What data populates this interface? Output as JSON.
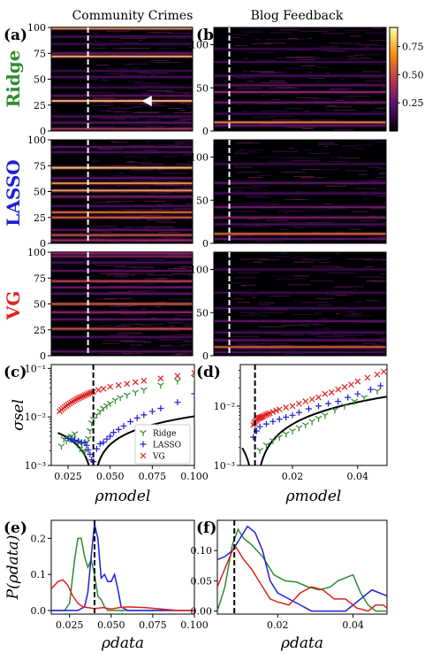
{
  "column_titles": [
    "Community Crimes",
    "Blog Feedback"
  ],
  "row_labels": [
    {
      "text": "Ridge",
      "color": "#2e8b2e"
    },
    {
      "text": "LASSO",
      "color": "#1f1fd6"
    },
    {
      "text": "VG",
      "color": "#e02020"
    }
  ],
  "panel_letters": [
    "(a)",
    "(b)",
    "(c)",
    "(d)",
    "(e)",
    "(f)"
  ],
  "colorbar": {
    "ticks": [
      "0.75",
      "0.50",
      "0.25"
    ],
    "colormap": "inferno"
  },
  "chart_data": [
    {
      "id": "a-heatmaps",
      "type": "heatmap",
      "dataset": "Community Crimes",
      "ylim": [
        0,
        100
      ],
      "yticks": [
        "0",
        "25",
        "50",
        "75",
        "100"
      ],
      "dashed_line_fraction": 0.26,
      "rows": {
        "Ridge": [
          [
            2,
            0.55
          ],
          [
            8,
            0.3
          ],
          [
            14,
            0.25
          ],
          [
            29,
            0.95
          ],
          [
            34,
            0.3
          ],
          [
            42,
            0.2
          ],
          [
            52,
            0.25
          ],
          [
            58,
            0.2
          ],
          [
            72,
            0.95
          ],
          [
            75,
            0.35
          ],
          [
            84,
            0.2
          ],
          [
            91,
            0.25
          ],
          [
            99,
            0.9
          ]
        ],
        "LASSO": [
          [
            3,
            0.5
          ],
          [
            8,
            0.65
          ],
          [
            13,
            0.3
          ],
          [
            25,
            0.7
          ],
          [
            30,
            0.75
          ],
          [
            36,
            0.25
          ],
          [
            45,
            0.4
          ],
          [
            51,
            0.9
          ],
          [
            58,
            0.85
          ],
          [
            63,
            0.3
          ],
          [
            73,
            1.0
          ],
          [
            88,
            0.25
          ],
          [
            93,
            0.3
          ]
        ],
        "VG": [
          [
            4,
            0.3
          ],
          [
            18,
            0.25
          ],
          [
            26,
            0.65
          ],
          [
            35,
            0.3
          ],
          [
            42,
            0.45
          ],
          [
            50,
            0.7
          ],
          [
            60,
            0.3
          ],
          [
            66,
            0.35
          ],
          [
            72,
            0.6
          ],
          [
            82,
            0.3
          ],
          [
            90,
            0.25
          ],
          [
            96,
            0.4
          ],
          [
            99,
            0.5
          ]
        ]
      },
      "marker": {
        "row": "Ridge",
        "y": 29,
        "x_fraction": 0.68,
        "shape": "triangle-left",
        "color": "#ffffff"
      }
    },
    {
      "id": "b-heatmaps",
      "type": "heatmap",
      "dataset": "Blog Feedback",
      "ylim": [
        0,
        120
      ],
      "yticks": [
        "0",
        "50",
        "100"
      ],
      "dashed_line_fraction": 0.09,
      "rows": {
        "Ridge": [
          [
            6,
            0.3
          ],
          [
            10,
            0.8
          ],
          [
            20,
            0.2
          ],
          [
            33,
            0.35
          ],
          [
            45,
            0.45
          ],
          [
            53,
            0.3
          ],
          [
            64,
            0.25
          ],
          [
            80,
            0.2
          ],
          [
            95,
            0.2
          ]
        ],
        "LASSO": [
          [
            5,
            0.3
          ],
          [
            11,
            0.75
          ],
          [
            22,
            0.25
          ],
          [
            30,
            0.4
          ],
          [
            42,
            0.35
          ],
          [
            58,
            0.25
          ],
          [
            70,
            0.3
          ],
          [
            92,
            0.2
          ]
        ],
        "VG": [
          [
            4,
            0.25
          ],
          [
            10,
            0.7
          ],
          [
            18,
            0.3
          ],
          [
            27,
            0.25
          ],
          [
            40,
            0.3
          ],
          [
            55,
            0.25
          ],
          [
            73,
            0.2
          ],
          [
            100,
            0.2
          ]
        ]
      }
    },
    {
      "id": "c-scatter",
      "type": "scatter",
      "ylabel": "σsel",
      "xlabel": "ρmodel",
      "log_y": true,
      "xlim": [
        0.015,
        0.1
      ],
      "ylim": [
        0.001,
        0.12
      ],
      "xticks": [
        "0.025",
        "0.050",
        "0.075",
        "0.100"
      ],
      "yticks": [
        "10⁻³",
        "10⁻²",
        "10⁻¹"
      ],
      "dashed_x": 0.04,
      "legend": {
        "placement": "lower right",
        "entries": [
          "Ridge",
          "LASSO",
          "VG"
        ]
      },
      "series": [
        {
          "name": "Ridge",
          "marker": "tri_down",
          "color": "#2e8b2e",
          "x": [
            0.021,
            0.0225,
            0.024,
            0.025,
            0.026,
            0.027,
            0.028,
            0.029,
            0.03,
            0.031,
            0.032,
            0.033,
            0.034,
            0.035,
            0.036,
            0.037,
            0.038,
            0.039,
            0.04,
            0.042,
            0.044,
            0.046,
            0.048,
            0.05,
            0.053,
            0.056,
            0.06,
            0.065,
            0.07,
            0.08,
            0.09,
            0.1
          ],
          "y": [
            0.0025,
            0.0035,
            0.0032,
            0.0038,
            0.0035,
            0.004,
            0.0036,
            0.0045,
            0.0032,
            0.0029,
            0.0022,
            0.0027,
            0.002,
            0.0019,
            0.003,
            0.0036,
            0.0052,
            0.0075,
            0.009,
            0.011,
            0.013,
            0.015,
            0.017,
            0.019,
            0.022,
            0.025,
            0.028,
            0.032,
            0.036,
            0.045,
            0.055,
            0.065
          ]
        },
        {
          "name": "LASSO",
          "marker": "plus",
          "color": "#1f1fd6",
          "x": [
            0.025,
            0.027,
            0.029,
            0.031,
            0.033,
            0.035,
            0.036,
            0.037,
            0.038,
            0.039,
            0.04,
            0.042,
            0.044,
            0.046,
            0.048,
            0.05,
            0.052,
            0.055,
            0.058,
            0.062,
            0.066,
            0.07,
            0.075,
            0.08,
            0.09,
            0.1
          ],
          "y": [
            0.0036,
            0.0034,
            0.0033,
            0.0032,
            0.003,
            0.003,
            0.0026,
            0.0021,
            0.0017,
            0.0013,
            0.0012,
            0.0022,
            0.0028,
            0.003,
            0.0035,
            0.004,
            0.0048,
            0.0055,
            0.0065,
            0.008,
            0.0095,
            0.011,
            0.013,
            0.015,
            0.02,
            0.03
          ]
        },
        {
          "name": "VG",
          "marker": "x",
          "color": "#e02020",
          "x": [
            0.02,
            0.021,
            0.022,
            0.023,
            0.024,
            0.025,
            0.026,
            0.027,
            0.028,
            0.029,
            0.03,
            0.031,
            0.032,
            0.033,
            0.034,
            0.035,
            0.036,
            0.037,
            0.038,
            0.039,
            0.04,
            0.043,
            0.046,
            0.05,
            0.055,
            0.06,
            0.065,
            0.07,
            0.08,
            0.09,
            0.1
          ],
          "y": [
            0.013,
            0.014,
            0.015,
            0.016,
            0.017,
            0.018,
            0.019,
            0.02,
            0.021,
            0.022,
            0.023,
            0.024,
            0.025,
            0.026,
            0.027,
            0.028,
            0.029,
            0.03,
            0.031,
            0.032,
            0.033,
            0.036,
            0.038,
            0.042,
            0.045,
            0.048,
            0.052,
            0.056,
            0.062,
            0.07,
            0.08
          ]
        }
      ],
      "fit_curve": {
        "color": "#000000",
        "center": 0.04,
        "scale": 0.085,
        "exponent": 0.75,
        "x_min": 0.019
      }
    },
    {
      "id": "d-scatter",
      "type": "scatter",
      "xlabel": "ρmodel",
      "log_y": true,
      "xlim": [
        0.004,
        0.049
      ],
      "ylim": [
        0.001,
        0.05
      ],
      "xticks": [
        "0.02",
        "0.04"
      ],
      "yticks": [
        "10⁻³",
        "10⁻²"
      ],
      "dashed_x": 0.0085,
      "series": [
        {
          "name": "Ridge",
          "marker": "tri_down",
          "color": "#2e8b2e",
          "x": [
            0.01,
            0.012,
            0.014,
            0.016,
            0.018,
            0.02,
            0.022,
            0.024,
            0.026,
            0.028,
            0.03,
            0.033,
            0.036,
            0.039,
            0.042,
            0.046
          ],
          "y": [
            0.0018,
            0.0022,
            0.0026,
            0.003,
            0.0034,
            0.0038,
            0.0043,
            0.0048,
            0.0055,
            0.0062,
            0.007,
            0.0085,
            0.01,
            0.012,
            0.014,
            0.018
          ]
        },
        {
          "name": "LASSO",
          "marker": "plus",
          "color": "#1f1fd6",
          "x": [
            0.008,
            0.009,
            0.01,
            0.012,
            0.014,
            0.016,
            0.018,
            0.02,
            0.022,
            0.025,
            0.028,
            0.031,
            0.034,
            0.037,
            0.04,
            0.044,
            0.047
          ],
          "y": [
            0.003,
            0.0038,
            0.0045,
            0.005,
            0.0055,
            0.006,
            0.0065,
            0.007,
            0.0078,
            0.009,
            0.01,
            0.011,
            0.012,
            0.014,
            0.016,
            0.019,
            0.022
          ]
        },
        {
          "name": "VG",
          "marker": "x",
          "color": "#e02020",
          "x": [
            0.008,
            0.0083,
            0.0086,
            0.0089,
            0.0092,
            0.0095,
            0.0098,
            0.0101,
            0.0104,
            0.0107,
            0.011,
            0.0115,
            0.012,
            0.0125,
            0.013,
            0.014,
            0.015,
            0.016,
            0.018,
            0.02,
            0.022,
            0.024,
            0.026,
            0.028,
            0.03,
            0.032,
            0.034,
            0.036,
            0.038,
            0.04,
            0.043,
            0.046,
            0.048
          ],
          "y": [
            0.0048,
            0.0052,
            0.0055,
            0.0058,
            0.006,
            0.0062,
            0.0063,
            0.0064,
            0.0065,
            0.0066,
            0.0068,
            0.007,
            0.0072,
            0.0074,
            0.0076,
            0.008,
            0.0084,
            0.0088,
            0.0095,
            0.01,
            0.011,
            0.012,
            0.013,
            0.014,
            0.016,
            0.017,
            0.019,
            0.021,
            0.023,
            0.026,
            0.03,
            0.034,
            0.038
          ]
        }
      ],
      "fit_curve": {
        "color": "#000000",
        "center": 0.0085,
        "scale": 0.22,
        "exponent": 0.85,
        "x_min": 0.0046
      }
    },
    {
      "id": "e-line",
      "type": "line",
      "ylabel": "P(ρdata)",
      "xlabel": "ρdata",
      "xlim": [
        0.014,
        0.1
      ],
      "ylim": [
        -0.01,
        0.25
      ],
      "xticks": [
        "0.025",
        "0.050",
        "0.075",
        "0.100"
      ],
      "yticks": [
        "0.0",
        "0.1",
        "0.2"
      ],
      "dashed_x": 0.04,
      "series": [
        {
          "name": "Ridge",
          "color": "#2e8b2e",
          "x": [
            0.014,
            0.022,
            0.025,
            0.028,
            0.03,
            0.032,
            0.034,
            0.036,
            0.038,
            0.04,
            0.042,
            0.044,
            0.046,
            0.048,
            0.05,
            0.06,
            0.1
          ],
          "y": [
            0.0,
            0.0,
            0.02,
            0.14,
            0.2,
            0.2,
            0.15,
            0.12,
            0.14,
            0.1,
            0.04,
            0.03,
            0.01,
            0.0,
            0.0,
            0.0,
            0.0
          ]
        },
        {
          "name": "LASSO",
          "color": "#1f1fd6",
          "x": [
            0.014,
            0.03,
            0.034,
            0.036,
            0.038,
            0.04,
            0.042,
            0.044,
            0.046,
            0.048,
            0.05,
            0.052,
            0.054,
            0.056,
            0.06,
            0.1
          ],
          "y": [
            0.0,
            0.0,
            0.01,
            0.05,
            0.15,
            0.24,
            0.2,
            0.09,
            0.1,
            0.08,
            0.08,
            0.1,
            0.06,
            0.01,
            0.0,
            0.0
          ]
        },
        {
          "name": "VG",
          "color": "#e02020",
          "x": [
            0.014,
            0.018,
            0.021,
            0.024,
            0.027,
            0.03,
            0.033,
            0.036,
            0.04,
            0.045,
            0.05,
            0.055,
            0.06,
            0.07,
            0.08,
            0.09,
            0.1
          ],
          "y": [
            0.06,
            0.08,
            0.085,
            0.07,
            0.04,
            0.02,
            0.01,
            0.008,
            0.005,
            0.008,
            0.004,
            0.008,
            0.01,
            0.008,
            0.004,
            0.0,
            0.0
          ]
        }
      ]
    },
    {
      "id": "f-line",
      "type": "line",
      "xlabel": "ρdata",
      "xlim": [
        0.004,
        0.049
      ],
      "ylim": [
        -0.005,
        0.15
      ],
      "xticks": [
        "0.02",
        "0.04"
      ],
      "yticks": [
        "0.00",
        "0.05",
        "0.10"
      ],
      "dashed_x": 0.0085,
      "series": [
        {
          "name": "Ridge",
          "color": "#2e8b2e",
          "x": [
            0.004,
            0.006,
            0.008,
            0.0095,
            0.011,
            0.013,
            0.016,
            0.019,
            0.022,
            0.025,
            0.028,
            0.031,
            0.034,
            0.036,
            0.038,
            0.04,
            0.042,
            0.044,
            0.046,
            0.048,
            0.049
          ],
          "y": [
            0.0,
            0.04,
            0.11,
            0.135,
            0.12,
            0.11,
            0.09,
            0.06,
            0.05,
            0.048,
            0.04,
            0.035,
            0.04,
            0.05,
            0.055,
            0.06,
            0.03,
            0.01,
            0.0,
            0.0,
            0.0
          ]
        },
        {
          "name": "LASSO",
          "color": "#1f1fd6",
          "x": [
            0.004,
            0.006,
            0.008,
            0.01,
            0.012,
            0.014,
            0.016,
            0.018,
            0.02,
            0.023,
            0.026,
            0.029,
            0.032,
            0.035,
            0.038,
            0.04,
            0.042,
            0.045,
            0.049
          ],
          "y": [
            0.085,
            0.09,
            0.1,
            0.12,
            0.14,
            0.13,
            0.1,
            0.05,
            0.03,
            0.02,
            0.01,
            0.0,
            0.0,
            0.0,
            0.0,
            0.01,
            0.02,
            0.035,
            0.025
          ]
        },
        {
          "name": "VG",
          "color": "#e02020",
          "x": [
            0.004,
            0.006,
            0.008,
            0.009,
            0.011,
            0.013,
            0.015,
            0.018,
            0.02,
            0.023,
            0.026,
            0.029,
            0.032,
            0.035,
            0.038,
            0.041,
            0.044,
            0.046,
            0.048,
            0.049
          ],
          "y": [
            0.04,
            0.07,
            0.1,
            0.105,
            0.085,
            0.07,
            0.05,
            0.02,
            0.015,
            0.01,
            0.03,
            0.04,
            0.035,
            0.02,
            0.02,
            0.005,
            0.0,
            0.01,
            0.01,
            0.005
          ]
        }
      ]
    }
  ]
}
